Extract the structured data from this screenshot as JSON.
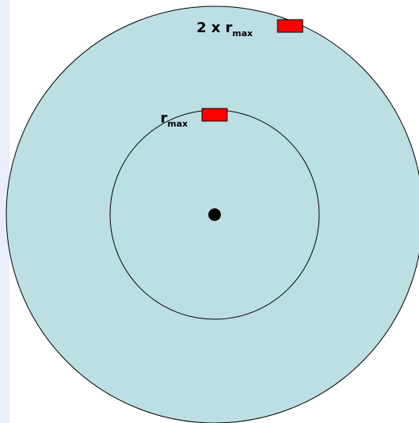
{
  "colors": {
    "left_strip": "#e8eefa",
    "disc_fill": "#bcdfe3",
    "outline": "#000000",
    "marker": "#ff0000",
    "center_dot": "#000000"
  },
  "labels": {
    "outer": {
      "prefix": "2 x r",
      "subscript": "max"
    },
    "inner": {
      "prefix": "r",
      "subscript": "max"
    }
  }
}
